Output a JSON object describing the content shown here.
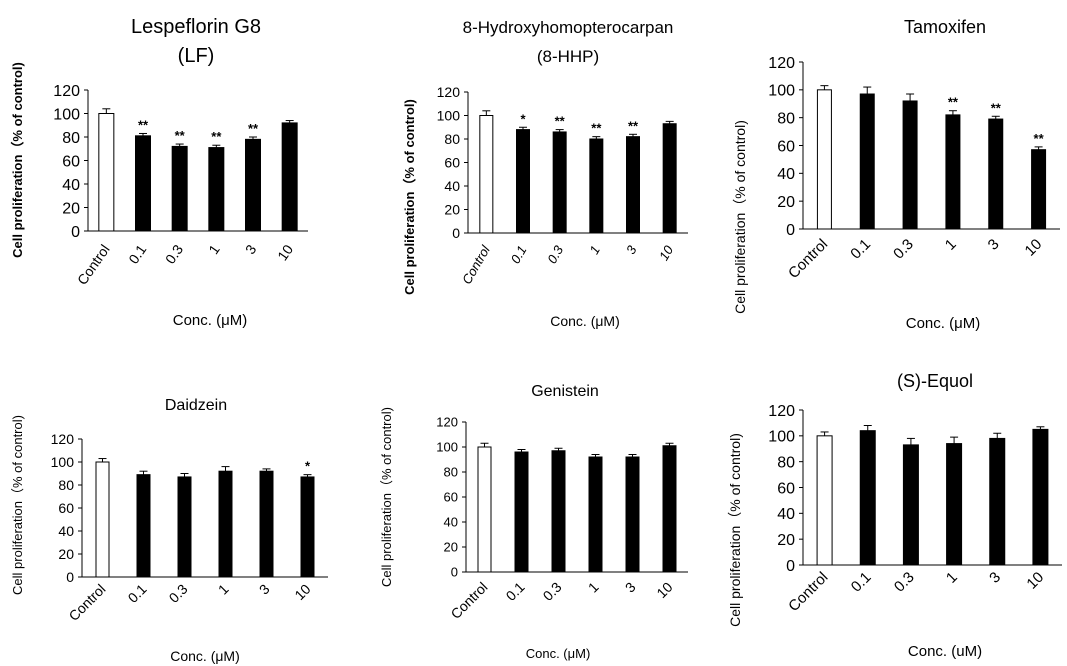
{
  "chart_data": [
    {
      "type": "bar",
      "title": "Lespeflorin G8",
      "subtitle": "(LF)",
      "xlabel": "Conc. (μM)",
      "ylabel": "Cell proliferation（% of control)",
      "categories": [
        "Control",
        "0.1",
        "0.3",
        "1",
        "3",
        "10"
      ],
      "values": [
        100,
        81,
        72,
        71,
        78,
        92
      ],
      "errors": [
        4,
        2,
        2,
        2,
        2,
        2
      ],
      "annotations": [
        "",
        "**",
        "**",
        "**",
        "**",
        ""
      ],
      "ylim": [
        0,
        120
      ],
      "yticks": [
        "0",
        "20",
        "40",
        "60",
        "80",
        "100",
        "120"
      ],
      "bar_fill": [
        "#ffffff",
        "#000000",
        "#000000",
        "#000000",
        "#000000",
        "#000000"
      ]
    },
    {
      "type": "bar",
      "title": "8-Hydroxyhomopterocarpan",
      "subtitle": "(8-HHP)",
      "xlabel": "Conc. (μM)",
      "ylabel": "Cell proliferation（% of control)",
      "categories": [
        "Control",
        "0.1",
        "0.3",
        "1",
        "3",
        "10"
      ],
      "values": [
        100,
        88,
        86,
        80,
        82,
        93
      ],
      "errors": [
        4,
        2,
        2,
        2,
        2,
        2
      ],
      "annotations": [
        "",
        "*",
        "**",
        "**",
        "**",
        ""
      ],
      "ylim": [
        0,
        120
      ],
      "yticks": [
        "0",
        "20",
        "40",
        "60",
        "80",
        "100",
        "120"
      ],
      "bar_fill": [
        "#ffffff",
        "#000000",
        "#000000",
        "#000000",
        "#000000",
        "#000000"
      ]
    },
    {
      "type": "bar",
      "title": "Tamoxifen",
      "subtitle": "",
      "xlabel": "Conc. (μM)",
      "ylabel": "Cell proliferation（% of control)",
      "categories": [
        "Control",
        "0.1",
        "0.3",
        "1",
        "3",
        "10"
      ],
      "values": [
        100,
        97,
        92,
        82,
        79,
        57
      ],
      "errors": [
        3,
        5,
        5,
        3,
        2,
        2
      ],
      "annotations": [
        "",
        "",
        "",
        "**",
        "**",
        "**"
      ],
      "ylim": [
        0,
        120
      ],
      "yticks": [
        "0",
        "20",
        "40",
        "60",
        "80",
        "100",
        "120"
      ],
      "bar_fill": [
        "#ffffff",
        "#000000",
        "#000000",
        "#000000",
        "#000000",
        "#000000"
      ]
    },
    {
      "type": "bar",
      "title": "Daidzein",
      "subtitle": "",
      "xlabel": "Conc. (μM)",
      "ylabel": "Cell proliferation（% of control)",
      "categories": [
        "Control",
        "0.1",
        "0.3",
        "1",
        "3",
        "10"
      ],
      "values": [
        100,
        89,
        87,
        92,
        92,
        87
      ],
      "errors": [
        3,
        3,
        3,
        4,
        2,
        2
      ],
      "annotations": [
        "",
        "",
        "",
        "",
        "",
        "*"
      ],
      "ylim": [
        0,
        120
      ],
      "yticks": [
        "0",
        "20",
        "40",
        "60",
        "80",
        "100",
        "120"
      ],
      "bar_fill": [
        "#ffffff",
        "#000000",
        "#000000",
        "#000000",
        "#000000",
        "#000000"
      ]
    },
    {
      "type": "bar",
      "title": "Genistein",
      "subtitle": "",
      "xlabel": "Conc. (μM)",
      "ylabel": "Cell proliferation（% of control)",
      "categories": [
        "Control",
        "0.1",
        "0.3",
        "1",
        "3",
        "10"
      ],
      "values": [
        100,
        96,
        97,
        92,
        92,
        101
      ],
      "errors": [
        3,
        2,
        2,
        2,
        2,
        2
      ],
      "annotations": [
        "",
        "",
        "",
        "",
        "",
        ""
      ],
      "ylim": [
        0,
        120
      ],
      "yticks": [
        "0",
        "20",
        "40",
        "60",
        "80",
        "100",
        "120"
      ],
      "bar_fill": [
        "#ffffff",
        "#000000",
        "#000000",
        "#000000",
        "#000000",
        "#000000"
      ]
    },
    {
      "type": "bar",
      "title": "(S)-Equol",
      "subtitle": "",
      "xlabel": "Conc. (uM)",
      "ylabel": "Cell proliferation（% of control)",
      "categories": [
        "Control",
        "0.1",
        "0.3",
        "1",
        "3",
        "10"
      ],
      "values": [
        100,
        104,
        93,
        94,
        98,
        105
      ],
      "errors": [
        3,
        4,
        5,
        5,
        4,
        2
      ],
      "annotations": [
        "",
        "",
        "",
        "",
        "",
        ""
      ],
      "ylim": [
        0,
        120
      ],
      "yticks": [
        "0",
        "20",
        "40",
        "60",
        "80",
        "100",
        "120"
      ],
      "bar_fill": [
        "#ffffff",
        "#000000",
        "#000000",
        "#000000",
        "#000000",
        "#000000"
      ]
    }
  ]
}
